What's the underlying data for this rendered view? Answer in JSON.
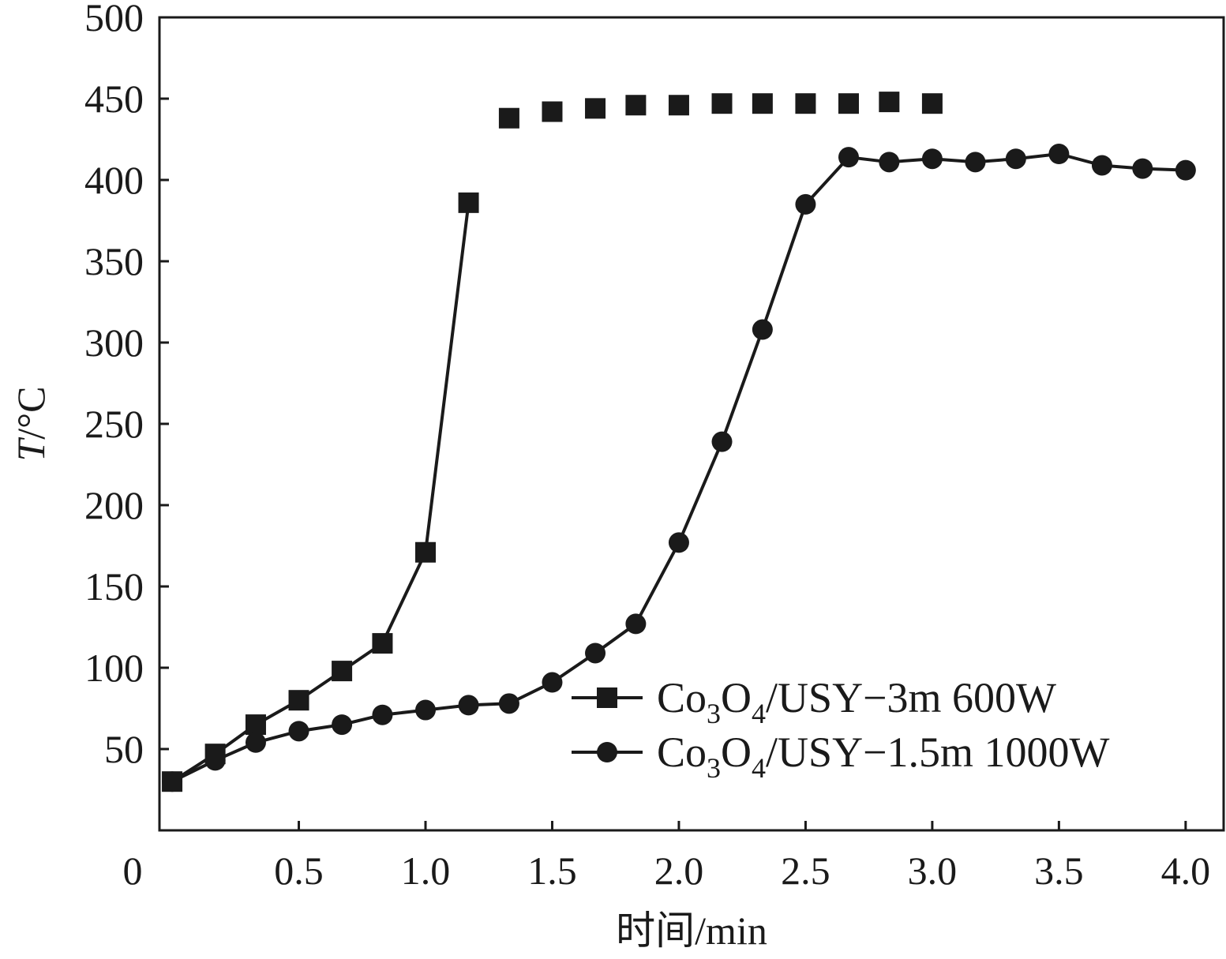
{
  "chart_data": {
    "type": "line",
    "xlabel": "时间/min",
    "ylabel_italic": "T",
    "ylabel_unit": "/°C",
    "xlim": [
      0,
      4.2
    ],
    "ylim": [
      0,
      500
    ],
    "x_origin_offset": 0.05,
    "xticks": [
      {
        "value": 0,
        "label": "0"
      },
      {
        "value": 0.5,
        "label": "0.5"
      },
      {
        "value": 1.0,
        "label": "1.0"
      },
      {
        "value": 1.5,
        "label": "1.5"
      },
      {
        "value": 2.0,
        "label": "2.0"
      },
      {
        "value": 2.5,
        "label": "2.5"
      },
      {
        "value": 3.0,
        "label": "3.0"
      },
      {
        "value": 3.5,
        "label": "3.5"
      },
      {
        "value": 4.0,
        "label": "4.0"
      }
    ],
    "yticks": [
      {
        "value": 50,
        "label": "50"
      },
      {
        "value": 100,
        "label": "100"
      },
      {
        "value": 150,
        "label": "150"
      },
      {
        "value": 200,
        "label": "200"
      },
      {
        "value": 250,
        "label": "250"
      },
      {
        "value": 300,
        "label": "300"
      },
      {
        "value": 350,
        "label": "350"
      },
      {
        "value": 400,
        "label": "400"
      },
      {
        "value": 450,
        "label": "450"
      },
      {
        "value": 500,
        "label": "500"
      }
    ],
    "grid": false,
    "legend_position": "bottom-right",
    "series": [
      {
        "legend_parts": [
          "Co",
          "3",
          "O",
          "4",
          "/USY−3m 600W"
        ],
        "marker": "square",
        "color": "#1a1a1a",
        "line_until_index": 7,
        "points": [
          [
            0.0,
            30
          ],
          [
            0.17,
            47
          ],
          [
            0.33,
            65
          ],
          [
            0.5,
            80
          ],
          [
            0.67,
            98
          ],
          [
            0.83,
            115
          ],
          [
            1.0,
            171
          ],
          [
            1.17,
            386
          ],
          [
            1.33,
            438
          ],
          [
            1.5,
            442
          ],
          [
            1.67,
            444
          ],
          [
            1.83,
            446
          ],
          [
            2.0,
            446
          ],
          [
            2.17,
            447
          ],
          [
            2.33,
            447
          ],
          [
            2.5,
            447
          ],
          [
            2.67,
            447
          ],
          [
            2.83,
            448
          ],
          [
            3.0,
            447
          ]
        ]
      },
      {
        "legend_parts": [
          "Co",
          "3",
          "O",
          "4",
          "/USY−1.5m 1000W"
        ],
        "marker": "circle",
        "color": "#1a1a1a",
        "points": [
          [
            0.0,
            30
          ],
          [
            0.17,
            43
          ],
          [
            0.33,
            54
          ],
          [
            0.5,
            61
          ],
          [
            0.67,
            65
          ],
          [
            0.83,
            71
          ],
          [
            1.0,
            74
          ],
          [
            1.17,
            77
          ],
          [
            1.33,
            78
          ],
          [
            1.5,
            91
          ],
          [
            1.67,
            109
          ],
          [
            1.83,
            127
          ],
          [
            2.0,
            177
          ],
          [
            2.17,
            239
          ],
          [
            2.33,
            308
          ],
          [
            2.5,
            385
          ],
          [
            2.67,
            414
          ],
          [
            2.83,
            411
          ],
          [
            3.0,
            413
          ],
          [
            3.17,
            411
          ],
          [
            3.33,
            413
          ],
          [
            3.5,
            416
          ],
          [
            3.67,
            409
          ],
          [
            3.83,
            407
          ],
          [
            4.0,
            406
          ]
        ]
      }
    ]
  }
}
